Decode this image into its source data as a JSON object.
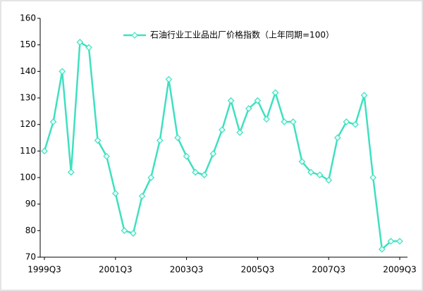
{
  "chart_data": {
    "type": "line",
    "categories": [
      "1999Q3",
      null,
      null,
      null,
      null,
      null,
      null,
      null,
      "2001Q3",
      null,
      null,
      null,
      null,
      null,
      null,
      null,
      "2003Q3",
      null,
      null,
      null,
      null,
      null,
      null,
      null,
      "2005Q3",
      null,
      null,
      null,
      null,
      null,
      null,
      null,
      "2007Q3",
      null,
      null,
      null,
      null,
      null,
      null,
      null,
      "2009Q3"
    ],
    "series": [
      {
        "name": "石油行业工业品出厂价格指数（上年同期=100）",
        "color": "#3fe0c0",
        "values": [
          110,
          121,
          140,
          102,
          151,
          149,
          114,
          108,
          94,
          80,
          79,
          93,
          100,
          114,
          137,
          115,
          108,
          102,
          101,
          109,
          118,
          129,
          117,
          126,
          129,
          122,
          132,
          121,
          121,
          106,
          102,
          101,
          99,
          115,
          121,
          120,
          131,
          100,
          73,
          76,
          76
        ]
      }
    ],
    "ylim": [
      70,
      160
    ],
    "yticks": [
      70,
      80,
      90,
      100,
      110,
      120,
      130,
      140,
      150,
      160
    ],
    "grid": false,
    "legend": "top"
  }
}
